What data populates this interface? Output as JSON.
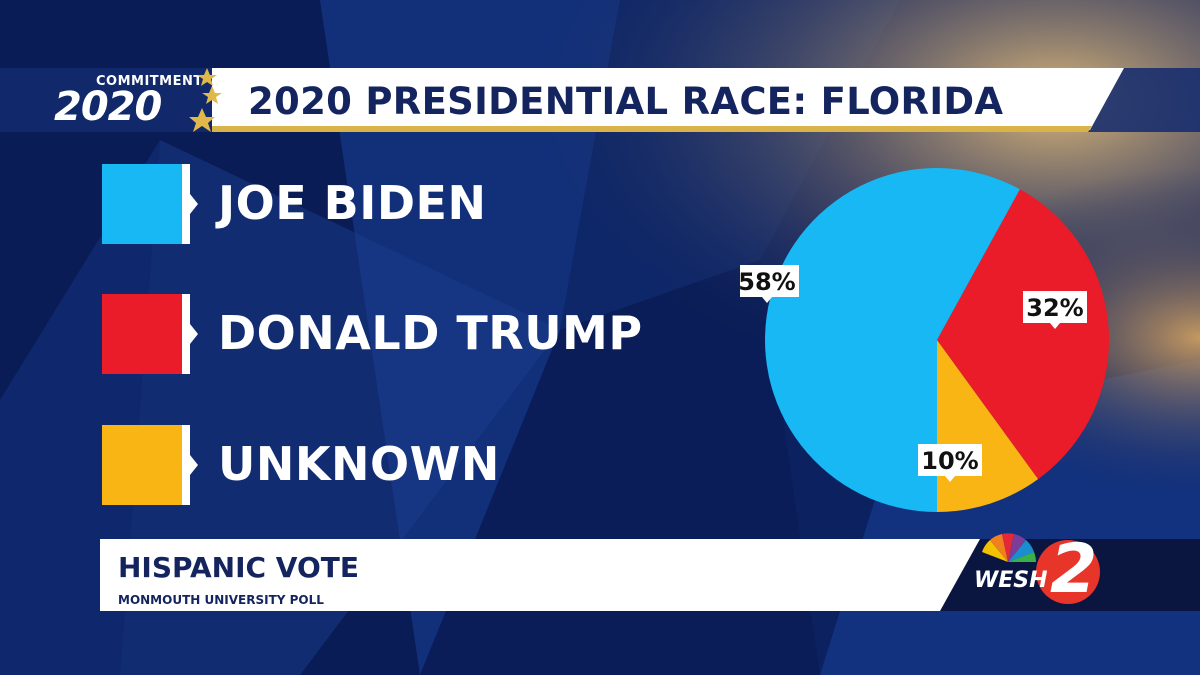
{
  "header": {
    "logo_top": "COMMITMENT",
    "logo_year": "2020",
    "title": "2020 PRESIDENTIAL RACE: FLORIDA"
  },
  "legend": [
    {
      "label": "JOE BIDEN",
      "color": "#17b8f3"
    },
    {
      "label": "DONALD TRUMP",
      "color": "#ea1c2a"
    },
    {
      "label": "UNKNOWN",
      "color": "#f8b514"
    }
  ],
  "chart_data": {
    "type": "pie",
    "title": "",
    "slices": [
      {
        "label": "JOE BIDEN",
        "value": 58,
        "display": "58%",
        "color": "#17b8f3"
      },
      {
        "label": "DONALD TRUMP",
        "value": 32,
        "display": "32%",
        "color": "#ea1c2a"
      },
      {
        "label": "UNKNOWN",
        "value": 10,
        "display": "10%",
        "color": "#f8b514"
      }
    ],
    "legend_position": "left"
  },
  "lower_third": {
    "title": "HISPANIC VOTE",
    "subtitle": "MONMOUTH UNIVERSITY POLL"
  },
  "station": {
    "name": "WESH",
    "channel": "2"
  },
  "colors": {
    "background": "#0b1f5c",
    "title_text": "#14245e",
    "gold_accent": "#d9b24a"
  }
}
